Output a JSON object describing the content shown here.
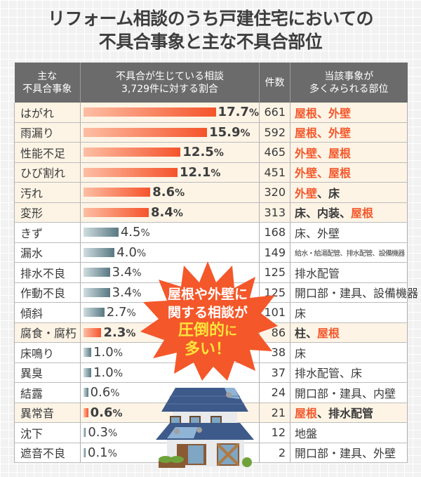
{
  "title": {
    "line1": "リフォーム相談のうち戸建住宅においての",
    "line2": "不具合事象と主な不具合部位"
  },
  "table": {
    "headers": {
      "event_line1": "主な",
      "event_line2": "不具合事象",
      "ratio_line1": "不具合が生じている相談",
      "ratio_line2": "3,729件に対する割合",
      "count": "件数",
      "parts_line1": "当該事象が",
      "parts_line2": "多くみられる部位"
    },
    "rows": [
      {
        "event": "はがれ",
        "pct": "17.7",
        "count": "661",
        "parts": [
          {
            "t": "屋根、外壁",
            "hot": true
          }
        ],
        "highlight": true,
        "color": "orange"
      },
      {
        "event": "雨漏り",
        "pct": "15.9",
        "count": "592",
        "parts": [
          {
            "t": "屋根、外壁",
            "hot": true
          }
        ],
        "highlight": true,
        "color": "orange"
      },
      {
        "event": "性能不足",
        "pct": "12.5",
        "count": "465",
        "parts": [
          {
            "t": "外壁、屋根",
            "hot": true
          }
        ],
        "highlight": true,
        "color": "orange"
      },
      {
        "event": "ひび割れ",
        "pct": "12.1",
        "count": "451",
        "parts": [
          {
            "t": "外壁、屋根",
            "hot": true
          }
        ],
        "highlight": true,
        "color": "orange"
      },
      {
        "event": "汚れ",
        "pct": "8.6",
        "count": "320",
        "parts": [
          {
            "t": "外壁",
            "hot": true
          },
          {
            "t": "、床",
            "hot": false
          }
        ],
        "highlight": true,
        "color": "orange"
      },
      {
        "event": "変形",
        "pct": "8.4",
        "count": "313",
        "parts": [
          {
            "t": "床、内装、",
            "hot": false
          },
          {
            "t": "屋根",
            "hot": true
          }
        ],
        "highlight": true,
        "color": "orange"
      },
      {
        "event": "きず",
        "pct": "4.5",
        "count": "168",
        "parts": [
          {
            "t": "床、外壁",
            "hot": false
          }
        ],
        "highlight": false,
        "color": "gray"
      },
      {
        "event": "漏水",
        "pct": "4.0",
        "count": "149",
        "parts": [
          {
            "t": "給水・給湯配管、排水配管、設備機器",
            "hot": false
          }
        ],
        "highlight": false,
        "color": "gray",
        "small": true
      },
      {
        "event": "排水不良",
        "pct": "3.4",
        "count": "125",
        "parts": [
          {
            "t": "排水配管",
            "hot": false
          }
        ],
        "highlight": false,
        "color": "gray"
      },
      {
        "event": "作動不良",
        "pct": "3.4",
        "count": "125",
        "parts": [
          {
            "t": "開口部・建具、設備機器",
            "hot": false
          }
        ],
        "highlight": false,
        "color": "gray"
      },
      {
        "event": "傾斜",
        "pct": "2.7",
        "count": "101",
        "parts": [
          {
            "t": "床",
            "hot": false
          }
        ],
        "highlight": false,
        "color": "gray"
      },
      {
        "event": "腐食・腐朽",
        "pct": "2.3",
        "count": "86",
        "parts": [
          {
            "t": "柱、",
            "hot": false
          },
          {
            "t": "屋根",
            "hot": true
          }
        ],
        "highlight": true,
        "color": "orange"
      },
      {
        "event": "床鳴り",
        "pct": "1.0",
        "count": "38",
        "parts": [
          {
            "t": "床",
            "hot": false
          }
        ],
        "highlight": false,
        "color": "gray"
      },
      {
        "event": "異臭",
        "pct": "1.0",
        "count": "37",
        "parts": [
          {
            "t": "排水配管、床",
            "hot": false
          }
        ],
        "highlight": false,
        "color": "gray"
      },
      {
        "event": "結露",
        "pct": "0.6",
        "count": "24",
        "parts": [
          {
            "t": "開口部・建具、内壁",
            "hot": false
          }
        ],
        "highlight": false,
        "color": "gray"
      },
      {
        "event": "異常音",
        "pct": "0.6",
        "count": "21",
        "parts": [
          {
            "t": "屋根",
            "hot": true
          },
          {
            "t": "、排水配管",
            "hot": false
          }
        ],
        "highlight": true,
        "color": "orange"
      },
      {
        "event": "沈下",
        "pct": "0.3",
        "count": "12",
        "parts": [
          {
            "t": "地盤",
            "hot": false
          }
        ],
        "highlight": false,
        "color": "gray"
      },
      {
        "event": "遮音不良",
        "pct": "0.1",
        "count": "2",
        "parts": [
          {
            "t": "開口部・建具、外壁",
            "hot": false
          }
        ],
        "highlight": false,
        "color": "gray"
      }
    ],
    "pct_unit": "%"
  },
  "callout": {
    "line1": "屋根や外壁に",
    "line2": "関する相談が",
    "line3a": "圧倒的",
    "line3b": "に",
    "line4a": "多",
    "line4b": "い！"
  },
  "colors": {
    "accent_orange": "#f4572a",
    "bar_gray": "#597882",
    "header_bg": "#6b6b6b",
    "highlight_row": "#fdf4e6",
    "callout_yellow": "#ffe53b"
  },
  "chart_data": {
    "type": "bar",
    "orientation": "horizontal",
    "title": "リフォーム相談のうち戸建住宅においての不具合事象と主な不具合部位",
    "xlabel": "不具合が生じている相談3,729件に対する割合",
    "ylabel": "主な不具合事象",
    "categories": [
      "はがれ",
      "雨漏り",
      "性能不足",
      "ひび割れ",
      "汚れ",
      "変形",
      "きず",
      "漏水",
      "排水不良",
      "作動不良",
      "傾斜",
      "腐食・腐朽",
      "床鳴り",
      "異臭",
      "結露",
      "異常音",
      "沈下",
      "遮音不良"
    ],
    "series": [
      {
        "name": "割合(%)",
        "values": [
          17.7,
          15.9,
          12.5,
          12.1,
          8.6,
          8.4,
          4.5,
          4.0,
          3.4,
          3.4,
          2.7,
          2.3,
          1.0,
          1.0,
          0.6,
          0.6,
          0.3,
          0.1
        ]
      },
      {
        "name": "件数",
        "values": [
          661,
          592,
          465,
          451,
          320,
          313,
          168,
          149,
          125,
          125,
          101,
          86,
          38,
          37,
          24,
          21,
          12,
          2
        ]
      }
    ],
    "total": 3729,
    "highlighted_categories": [
      "はがれ",
      "雨漏り",
      "性能不足",
      "ひび割れ",
      "汚れ",
      "変形",
      "腐食・腐朽",
      "異常音"
    ],
    "grid": false,
    "legend": "none"
  }
}
